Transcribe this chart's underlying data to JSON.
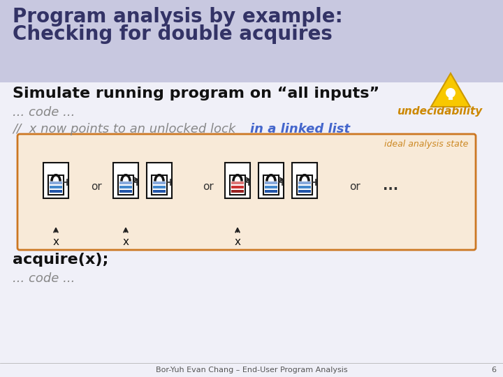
{
  "bg_color": "#e8e8f0",
  "title_bg_color": "#c8c8e0",
  "title_text_line1": "Program analysis by example:",
  "title_text_line2": "Checking for double acquires",
  "title_fontsize": 20,
  "title_color": "#333366",
  "body_bg_color": "#f0f0f8",
  "subtitle_text": "Simulate running program on “all inputs”",
  "subtitle_fontsize": 16,
  "subtitle_color": "#111111",
  "code_text": "... code ...",
  "code_fontsize": 13,
  "code_color": "#888888",
  "comment_text": "//  x now points to an unlocked lock ",
  "comment_linked": "in a linked list",
  "comment_fontsize": 13,
  "comment_color": "#888888",
  "comment_linked_color": "#4466cc",
  "undecidability_text": "undecidability",
  "undecidability_color": "#cc8800",
  "undecidability_fontsize": 11,
  "box_bg_color": "#f8ead8",
  "box_border_color": "#cc7722",
  "ideal_text": "ideal analysis state",
  "ideal_color": "#cc8822",
  "ideal_fontsize": 9,
  "acquire_text": "acquire(x);",
  "acquire_fontsize": 16,
  "acquire_color": "#111111",
  "code2_text": "... code ...",
  "footer_text": "Bor-Yuh Evan Chang – End-User Program Analysis",
  "footer_color": "#555555",
  "footer_fontsize": 8,
  "page_num": "6",
  "lock_blue_dark": "#2255aa",
  "lock_blue_mid": "#4488cc",
  "lock_blue_light": "#88aadd",
  "lock_red_dark": "#992222",
  "lock_red_mid": "#cc3333",
  "lock_red_light": "#dd7777",
  "lock_body_color": "white",
  "lock_outline": "#111111"
}
